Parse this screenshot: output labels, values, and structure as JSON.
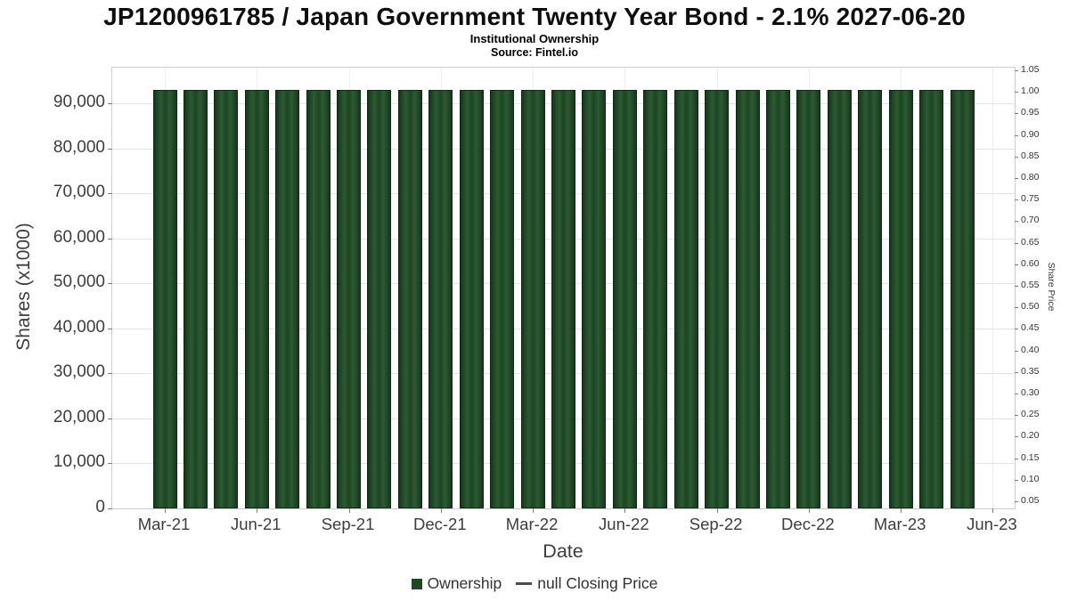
{
  "chart_data": {
    "type": "bar",
    "title": "JP1200961785 / Japan Government Twenty Year Bond - 2.1% 2027-06-20",
    "subtitle": "Institutional Ownership",
    "source": "Source: Fintel.io",
    "xlabel": "Date",
    "ylabel": "Shares (x1000)",
    "ylabel_right": "Share Price",
    "categories": [
      "Mar-21",
      "Apr-21",
      "May-21",
      "Jun-21",
      "Jul-21",
      "Aug-21",
      "Sep-21",
      "Oct-21",
      "Nov-21",
      "Dec-21",
      "Jan-22",
      "Feb-22",
      "Mar-22",
      "Apr-22",
      "May-22",
      "Jun-22",
      "Jul-22",
      "Aug-22",
      "Sep-22",
      "Oct-22",
      "Nov-22",
      "Dec-22",
      "Jan-23",
      "Feb-23",
      "Mar-23",
      "Apr-23",
      "May-23"
    ],
    "values": [
      93000,
      93000,
      93000,
      93000,
      93000,
      93000,
      93000,
      93000,
      93000,
      93000,
      93000,
      93000,
      93000,
      93000,
      93000,
      93000,
      93000,
      93000,
      93000,
      93000,
      93000,
      93000,
      93000,
      93000,
      93000,
      93000,
      93000
    ],
    "ylim_left": [
      0,
      98000
    ],
    "ylim_right": [
      0.05,
      1.05
    ],
    "grid": true,
    "legend_position": "bottom",
    "y_left_ticks": [
      "0",
      "10,000",
      "20,000",
      "30,000",
      "40,000",
      "50,000",
      "60,000",
      "70,000",
      "80,000",
      "90,000"
    ],
    "y_right_ticks": [
      "1.05",
      "1.00",
      "0.95",
      "0.90",
      "0.85",
      "0.80",
      "0.75",
      "0.70",
      "0.65",
      "0.60",
      "0.55",
      "0.50",
      "0.45",
      "0.40",
      "0.35",
      "0.30",
      "0.25",
      "0.20",
      "0.15",
      "0.10",
      "0.05"
    ],
    "x_ticks": [
      {
        "label": "Mar-21",
        "month": 0
      },
      {
        "label": "Jun-21",
        "month": 3
      },
      {
        "label": "Sep-21",
        "month": 6
      },
      {
        "label": "Dec-21",
        "month": 9
      },
      {
        "label": "Mar-22",
        "month": 12
      },
      {
        "label": "Jun-22",
        "month": 15
      },
      {
        "label": "Sep-22",
        "month": 18
      },
      {
        "label": "Dec-22",
        "month": 21
      },
      {
        "label": "Mar-23",
        "month": 24
      },
      {
        "label": "Jun-23",
        "month": 27
      }
    ],
    "colors": {
      "bar": "#1e4722",
      "bar_border": "#0f2a14",
      "grid": "#e4e4e4",
      "axis_border": "#cccccc",
      "tick_text": "#3d3d3d",
      "legend_dash": "#4d4d4d"
    },
    "legend": [
      {
        "label": "Ownership",
        "marker": "square"
      },
      {
        "label": "null Closing Price",
        "marker": "dash"
      }
    ]
  }
}
